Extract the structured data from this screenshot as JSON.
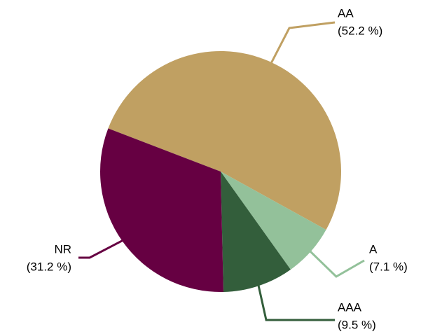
{
  "chart_data": {
    "type": "pie",
    "categories": [
      "AA",
      "A",
      "AAA",
      "NR"
    ],
    "values": [
      52.2,
      7.1,
      9.5,
      31.2
    ],
    "value_labels": [
      "(52.2 %)",
      "(7.1 %)",
      "(9.5 %)",
      "(31.2 %)"
    ],
    "colors": [
      "#c0a062",
      "#93c19a",
      "#335e3b",
      "#660042"
    ]
  }
}
